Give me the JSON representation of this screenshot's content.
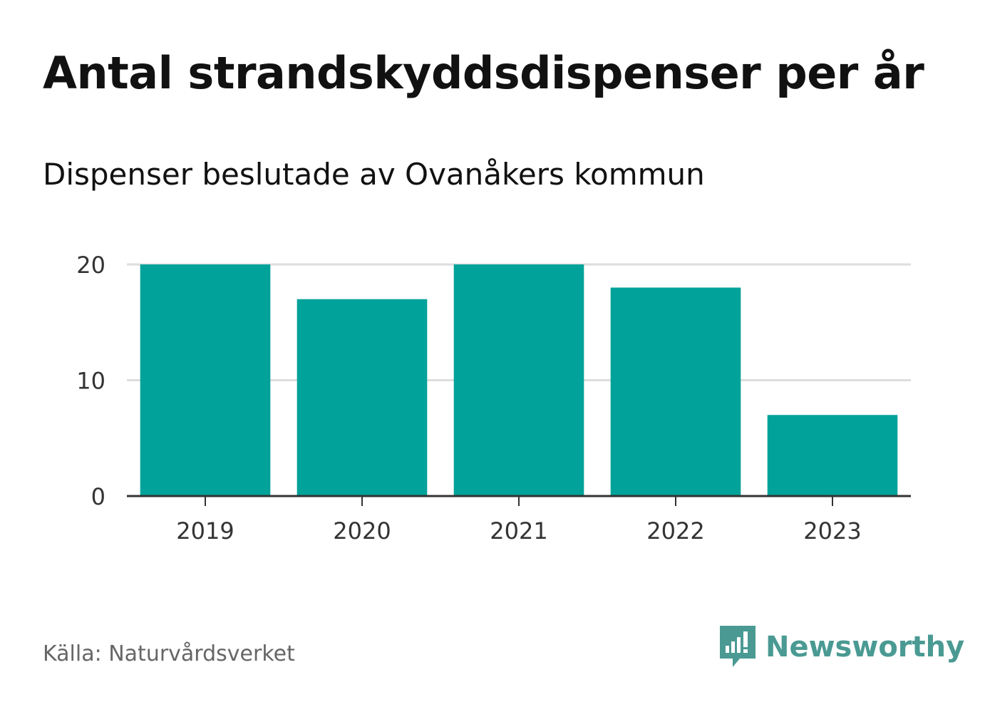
{
  "title": "Antal strandskyddsdispenser per år",
  "subtitle": "Dispenser beslutade av Ovanåkers kommun",
  "source": "Källa: Naturvårdsverket",
  "brand": {
    "name": "Newsworthy",
    "icon": "newsworthy-logo-icon",
    "color": "#4a9a93"
  },
  "colors": {
    "bar": "#00a29a",
    "grid": "#dddddd",
    "axis": "#333333",
    "tick_text": "#333333"
  },
  "chart_data": {
    "type": "bar",
    "title": "Antal strandskyddsdispenser per år",
    "subtitle": "Dispenser beslutade av Ovanåkers kommun",
    "categories": [
      "2019",
      "2020",
      "2021",
      "2022",
      "2023"
    ],
    "values": [
      20,
      17,
      20,
      18,
      7
    ],
    "xlabel": "",
    "ylabel": "",
    "ylim": [
      0,
      20
    ],
    "yticks": [
      0,
      10,
      20
    ],
    "grid": true
  }
}
